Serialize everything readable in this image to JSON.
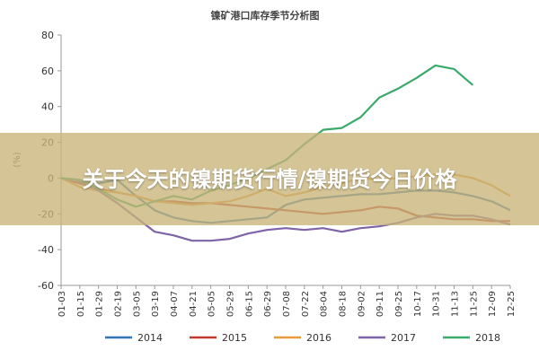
{
  "chart_data": {
    "type": "line",
    "title": "镍矿港口库存季节分析图",
    "ylabel": "(%)",
    "ylim": [
      -60,
      80
    ],
    "yticks": [
      80,
      60,
      40,
      20,
      0,
      -20,
      -40,
      -60
    ],
    "categories": [
      "01-03",
      "01-15",
      "01-29",
      "02-19",
      "03-05",
      "03-19",
      "04-07",
      "04-21",
      "05-05",
      "05-29",
      "06-15",
      "06-29",
      "07-08",
      "07-22",
      "08-04",
      "08-18",
      "09-02",
      "09-11",
      "09-25",
      "10-17",
      "10-31",
      "11-13",
      "11-25",
      "12-09",
      "12-25"
    ],
    "series": [
      {
        "name": "2014",
        "color": "#2f75b5",
        "values": [
          0,
          -2,
          -3,
          -1,
          -10,
          -18,
          -22,
          -24,
          -25,
          -24,
          -23,
          -22,
          -15,
          -12,
          -11,
          -10,
          -9,
          -9,
          -8,
          -7,
          -7,
          -8,
          -10,
          -13,
          -18
        ]
      },
      {
        "name": "2015",
        "color": "#c0392b",
        "values": [
          0,
          -3,
          -6,
          -8,
          -10,
          -13,
          -13,
          -14,
          -14,
          -15,
          -16,
          -17,
          -18,
          -19,
          -20,
          -19,
          -18,
          -16,
          -17,
          -21,
          -22,
          -23,
          -23,
          -24,
          -24
        ]
      },
      {
        "name": "2016",
        "color": "#e69a3a",
        "values": [
          0,
          -5,
          -7,
          -8,
          -10,
          -13,
          -14,
          -15,
          -14,
          -13,
          -10,
          -6,
          -10,
          -8,
          -5,
          -3,
          0,
          -1,
          0,
          1,
          2,
          2,
          0,
          -4,
          -10
        ]
      },
      {
        "name": "2017",
        "color": "#7e63a8",
        "values": [
          0,
          -2,
          -7,
          -14,
          -22,
          -30,
          -32,
          -35,
          -35,
          -34,
          -31,
          -29,
          -28,
          -29,
          -28,
          -30,
          -28,
          -27,
          -25,
          -22,
          -20,
          -21,
          -21,
          -23,
          -26
        ]
      },
      {
        "name": "2018",
        "color": "#3aaa6a",
        "values": [
          0,
          -1,
          -6,
          -12,
          -16,
          -13,
          -10,
          -12,
          -7,
          -4,
          0,
          5,
          10,
          19,
          27,
          28,
          34,
          45,
          50,
          56,
          63,
          61,
          52,
          null,
          null
        ]
      }
    ],
    "legend_position": "bottom",
    "grid": false
  },
  "banner": {
    "text": "关于今天的镍期货行情/镍期货今日价格"
  }
}
